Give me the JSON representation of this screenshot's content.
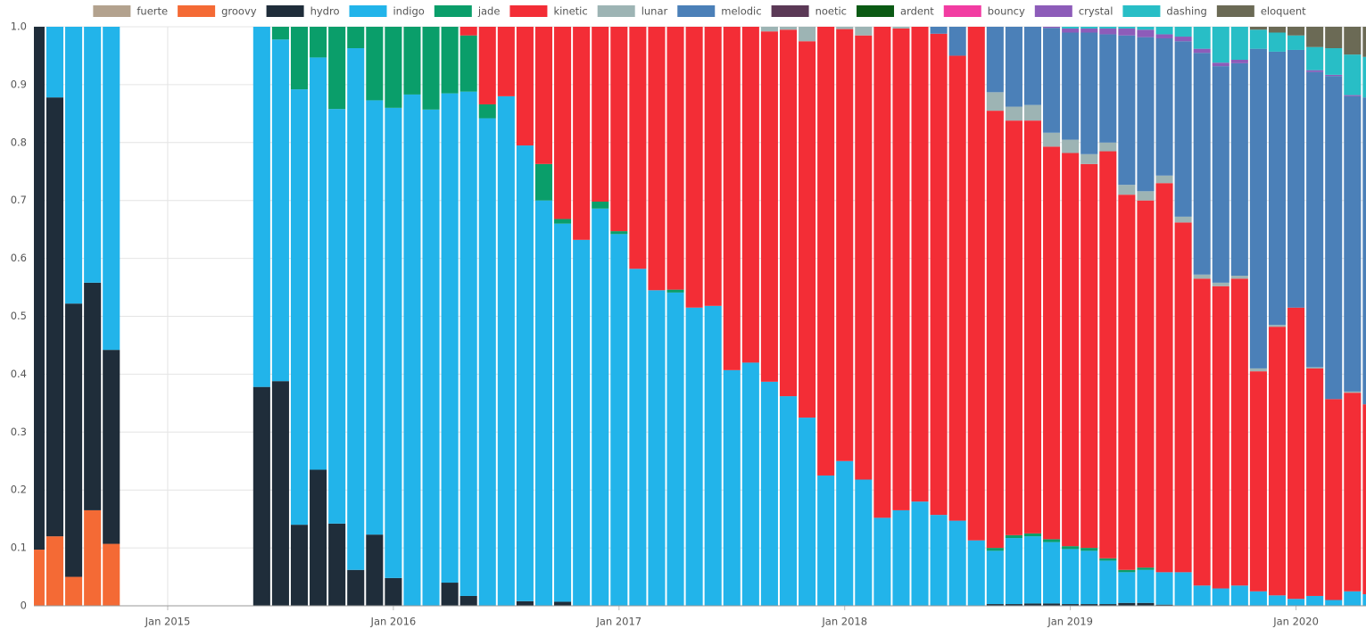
{
  "chart_data": {
    "type": "stacked-bar",
    "legend": "top",
    "grid": true,
    "x": [
      "2014-06",
      "2014-07",
      "2014-08",
      "2014-09",
      "2014-10",
      "2015-06",
      "2015-07",
      "2015-08",
      "2015-09",
      "2015-10",
      "2015-11",
      "2015-12",
      "2016-01",
      "2016-02",
      "2016-03",
      "2016-04",
      "2016-05",
      "2016-06",
      "2016-07",
      "2016-08",
      "2016-09",
      "2016-10",
      "2016-11",
      "2016-12",
      "2017-01",
      "2017-02",
      "2017-03",
      "2017-04",
      "2017-05",
      "2017-06",
      "2017-07",
      "2017-08",
      "2017-09",
      "2017-10",
      "2017-11",
      "2017-12",
      "2018-01",
      "2018-02",
      "2018-03",
      "2018-04",
      "2018-05",
      "2018-06",
      "2018-07",
      "2018-08",
      "2018-09",
      "2018-10",
      "2018-11",
      "2018-12",
      "2019-01",
      "2019-02",
      "2019-03",
      "2019-04",
      "2019-05",
      "2019-06",
      "2019-07",
      "2019-08",
      "2019-09",
      "2019-10",
      "2019-11",
      "2019-12",
      "2020-01",
      "2020-02",
      "2020-03",
      "2020-04",
      "2020-05"
    ],
    "xlim": [
      "2014-05-28",
      "2020-04-23"
    ],
    "xticks": [
      {
        "value": "2015-01",
        "label": "Jan 2015"
      },
      {
        "value": "2016-01",
        "label": "Jan 2016"
      },
      {
        "value": "2017-01",
        "label": "Jan 2017"
      },
      {
        "value": "2018-01",
        "label": "Jan 2018"
      },
      {
        "value": "2019-01",
        "label": "Jan 2019"
      },
      {
        "value": "2020-01",
        "label": "Jan 2020"
      }
    ],
    "ylim": [
      0,
      1
    ],
    "yticks": [
      0,
      0.1,
      0.2,
      0.3,
      0.4,
      0.5,
      0.6,
      0.7,
      0.8,
      0.9,
      {
        "value": 1,
        "label": "1.0"
      }
    ],
    "series": [
      {
        "name": "fuerte",
        "color": "#b3a28e",
        "values": [
          0,
          0,
          0,
          0,
          0,
          0,
          0,
          0,
          0,
          0,
          0,
          0,
          0,
          0,
          0,
          0,
          0,
          0,
          0,
          0,
          0,
          0,
          0,
          0,
          0,
          0,
          0,
          0,
          0,
          0,
          0,
          0,
          0,
          0,
          0,
          0,
          0,
          0,
          0,
          0,
          0,
          0,
          0,
          0,
          0,
          0,
          0,
          0,
          0,
          0,
          0,
          0,
          0,
          0,
          0,
          0,
          0,
          0,
          0,
          0,
          0,
          0,
          0,
          0,
          0
        ]
      },
      {
        "name": "groovy",
        "color": "#f46a35",
        "values": [
          0.097,
          0.12,
          0.05,
          0.165,
          0.107,
          0,
          0,
          0,
          0,
          0,
          0,
          0,
          0,
          0,
          0,
          0,
          0,
          0,
          0,
          0,
          0,
          0,
          0,
          0,
          0,
          0,
          0,
          0,
          0,
          0,
          0,
          0,
          0,
          0,
          0,
          0,
          0,
          0,
          0,
          0,
          0,
          0,
          0,
          0,
          0,
          0,
          0,
          0,
          0,
          0,
          0,
          0,
          0,
          0,
          0,
          0,
          0,
          0,
          0,
          0,
          0,
          0,
          0,
          0,
          0
        ]
      },
      {
        "name": "hydro",
        "color": "#1f2d3a",
        "values": [
          0.903,
          0.758,
          0.472,
          0.393,
          0.335,
          0.378,
          0.388,
          0.14,
          0.235,
          0.142,
          0.062,
          0.123,
          0.048,
          0,
          0,
          0.04,
          0.017,
          0,
          0,
          0.008,
          0,
          0.007,
          0,
          0,
          0,
          0,
          0,
          0,
          0,
          0,
          0,
          0,
          0,
          0,
          0,
          0,
          0,
          0,
          0,
          0,
          0,
          0,
          0,
          0,
          0.003,
          0.003,
          0.004,
          0.004,
          0.003,
          0.003,
          0.003,
          0.005,
          0.005,
          0.002,
          0,
          0,
          0,
          0,
          0,
          0,
          0,
          0,
          0,
          0,
          0
        ]
      },
      {
        "name": "indigo",
        "color": "#22b4ea",
        "values": [
          0,
          0.122,
          0.478,
          0.442,
          0.558,
          0.622,
          0.59,
          0.752,
          0.712,
          0.716,
          0.901,
          0.75,
          0.812,
          0.883,
          0.857,
          0.845,
          0.871,
          0.842,
          0.88,
          0.787,
          0.7,
          0.653,
          0.632,
          0.686,
          0.642,
          0.582,
          0.545,
          0.541,
          0.515,
          0.518,
          0.407,
          0.42,
          0.387,
          0.362,
          0.325,
          0.225,
          0.25,
          0.218,
          0.152,
          0.165,
          0.18,
          0.157,
          0.147,
          0.113,
          0.092,
          0.114,
          0.116,
          0.106,
          0.095,
          0.092,
          0.075,
          0.053,
          0.057,
          0.056,
          0.058,
          0.035,
          0.03,
          0.035,
          0.025,
          0.018,
          0.012,
          0.017,
          0.01,
          0.025,
          0.02
        ]
      },
      {
        "name": "jade",
        "color": "#0a9e6a",
        "values": [
          0,
          0,
          0,
          0,
          0,
          0,
          0.022,
          0.108,
          0.053,
          0.142,
          0.037,
          0.127,
          0.14,
          0.117,
          0.143,
          0.115,
          0.097,
          0.024,
          0,
          0,
          0.063,
          0.008,
          0,
          0.012,
          0.005,
          0,
          0,
          0.005,
          0,
          0,
          0,
          0,
          0,
          0,
          0,
          0,
          0,
          0,
          0,
          0,
          0,
          0,
          0,
          0,
          0.005,
          0.005,
          0.005,
          0.005,
          0.005,
          0.005,
          0.004,
          0.004,
          0.004,
          0,
          0,
          0,
          0,
          0,
          0,
          0,
          0,
          0,
          0,
          0,
          0
        ]
      },
      {
        "name": "kinetic",
        "color": "#f32d36",
        "values": [
          0,
          0,
          0,
          0,
          0,
          0,
          0,
          0,
          0,
          0,
          0,
          0,
          0,
          0,
          0,
          0,
          0.015,
          0.134,
          0.12,
          0.205,
          0.237,
          0.332,
          0.368,
          0.302,
          0.353,
          0.418,
          0.455,
          0.454,
          0.485,
          0.482,
          0.593,
          0.58,
          0.605,
          0.633,
          0.65,
          0.775,
          0.746,
          0.767,
          0.848,
          0.832,
          0.82,
          0.831,
          0.803,
          0.887,
          0.755,
          0.716,
          0.713,
          0.678,
          0.679,
          0.663,
          0.703,
          0.648,
          0.634,
          0.672,
          0.604,
          0.53,
          0.522,
          0.53,
          0.38,
          0.464,
          0.503,
          0.393,
          0.347,
          0.343,
          0.328
        ]
      },
      {
        "name": "lunar",
        "color": "#9db4b4",
        "values": [
          0,
          0,
          0,
          0,
          0,
          0,
          0,
          0,
          0,
          0,
          0,
          0,
          0,
          0,
          0,
          0,
          0,
          0,
          0,
          0,
          0,
          0,
          0,
          0,
          0,
          0,
          0,
          0,
          0,
          0,
          0,
          0,
          0.008,
          0.005,
          0.025,
          0,
          0.004,
          0.015,
          0,
          0.003,
          0,
          0,
          0,
          0,
          0.032,
          0.024,
          0.027,
          0.024,
          0.023,
          0.017,
          0.015,
          0.017,
          0.016,
          0.013,
          0.01,
          0.007,
          0.006,
          0.005,
          0.005,
          0.003,
          0,
          0.002,
          0,
          0.002,
          0
        ]
      },
      {
        "name": "melodic",
        "color": "#4b80b8",
        "values": [
          0,
          0,
          0,
          0,
          0,
          0,
          0,
          0,
          0,
          0,
          0,
          0,
          0,
          0,
          0,
          0,
          0,
          0,
          0,
          0,
          0,
          0,
          0,
          0,
          0,
          0,
          0,
          0,
          0,
          0,
          0,
          0,
          0,
          0,
          0,
          0,
          0,
          0,
          0,
          0,
          0,
          0.012,
          0.05,
          0,
          0.113,
          0.138,
          0.135,
          0.181,
          0.185,
          0.21,
          0.187,
          0.258,
          0.266,
          0.237,
          0.303,
          0.383,
          0.374,
          0.367,
          0.552,
          0.472,
          0.445,
          0.51,
          0.558,
          0.51,
          0.53
        ]
      },
      {
        "name": "noetic",
        "color": "#5b3956",
        "values": [
          0,
          0,
          0,
          0,
          0,
          0,
          0,
          0,
          0,
          0,
          0,
          0,
          0,
          0,
          0,
          0,
          0,
          0,
          0,
          0,
          0,
          0,
          0,
          0,
          0,
          0,
          0,
          0,
          0,
          0,
          0,
          0,
          0,
          0,
          0,
          0,
          0,
          0,
          0,
          0,
          0,
          0,
          0,
          0,
          0,
          0,
          0,
          0,
          0,
          0,
          0,
          0,
          0,
          0,
          0,
          0,
          0,
          0,
          0,
          0,
          0,
          0,
          0,
          0,
          0
        ]
      },
      {
        "name": "ardent",
        "color": "#0b5a14",
        "values": [
          0,
          0,
          0,
          0,
          0,
          0,
          0,
          0,
          0,
          0,
          0,
          0,
          0,
          0,
          0,
          0,
          0,
          0,
          0,
          0,
          0,
          0,
          0,
          0,
          0,
          0,
          0,
          0,
          0,
          0,
          0,
          0,
          0,
          0,
          0,
          0,
          0,
          0,
          0,
          0,
          0,
          0,
          0,
          0,
          0,
          0,
          0,
          0,
          0,
          0,
          0,
          0,
          0,
          0,
          0,
          0,
          0,
          0,
          0,
          0,
          0,
          0,
          0,
          0,
          0
        ]
      },
      {
        "name": "bouncy",
        "color": "#f23ca2",
        "values": [
          0,
          0,
          0,
          0,
          0,
          0,
          0,
          0,
          0,
          0,
          0,
          0,
          0,
          0,
          0,
          0,
          0,
          0,
          0,
          0,
          0,
          0,
          0,
          0,
          0,
          0,
          0,
          0,
          0,
          0,
          0,
          0,
          0,
          0,
          0,
          0,
          0,
          0,
          0,
          0,
          0,
          0,
          0,
          0,
          0,
          0,
          0,
          0,
          0,
          0,
          0,
          0,
          0,
          0,
          0,
          0,
          0,
          0,
          0,
          0,
          0,
          0,
          0,
          0,
          0
        ]
      },
      {
        "name": "crystal",
        "color": "#8d5cb9",
        "values": [
          0,
          0,
          0,
          0,
          0,
          0,
          0,
          0,
          0,
          0,
          0,
          0,
          0,
          0,
          0,
          0,
          0,
          0,
          0,
          0,
          0,
          0,
          0,
          0,
          0,
          0,
          0,
          0,
          0,
          0,
          0,
          0,
          0,
          0,
          0,
          0,
          0,
          0,
          0,
          0,
          0,
          0,
          0,
          0,
          0,
          0,
          0,
          0.002,
          0.007,
          0.007,
          0.01,
          0.012,
          0.013,
          0.007,
          0.008,
          0.007,
          0.006,
          0.006,
          0,
          0,
          0,
          0.003,
          0.002,
          0.002,
          0
        ]
      },
      {
        "name": "dashing",
        "color": "#28bec6",
        "values": [
          0,
          0,
          0,
          0,
          0,
          0,
          0,
          0,
          0,
          0,
          0,
          0,
          0,
          0,
          0,
          0,
          0,
          0,
          0,
          0,
          0,
          0,
          0,
          0,
          0,
          0,
          0,
          0,
          0,
          0,
          0,
          0,
          0,
          0,
          0,
          0,
          0,
          0,
          0,
          0,
          0,
          0,
          0,
          0,
          0,
          0,
          0,
          0,
          0.003,
          0.003,
          0.003,
          0.003,
          0.005,
          0.013,
          0.017,
          0.038,
          0.062,
          0.057,
          0.033,
          0.033,
          0.025,
          0.04,
          0.046,
          0.07,
          0.07
        ]
      },
      {
        "name": "eloquent",
        "color": "#6b6a55",
        "values": [
          0,
          0,
          0,
          0,
          0,
          0,
          0,
          0,
          0,
          0,
          0,
          0,
          0,
          0,
          0,
          0,
          0,
          0,
          0,
          0,
          0,
          0,
          0,
          0,
          0,
          0,
          0,
          0,
          0,
          0,
          0,
          0,
          0,
          0,
          0,
          0,
          0,
          0,
          0,
          0,
          0,
          0,
          0,
          0,
          0,
          0,
          0,
          0,
          0,
          0,
          0,
          0,
          0,
          0,
          0,
          0,
          0,
          0,
          0.005,
          0.01,
          0.015,
          0.035,
          0.037,
          0.048,
          0.052
        ]
      }
    ]
  }
}
